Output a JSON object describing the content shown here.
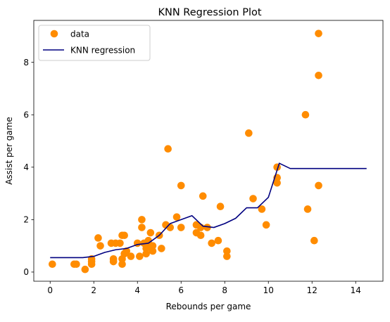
{
  "colors": {
    "data": "#ff8c00",
    "regression": "#000080",
    "axis": "#000000",
    "legend_border": "#cccccc",
    "background": "#ffffff"
  },
  "chart_data": {
    "type": "scatter",
    "title": "KNN Regression Plot",
    "xlabel": "Rebounds per game",
    "ylabel": "Assist per game",
    "xlim": [
      -0.75,
      15.25
    ],
    "ylim": [
      -0.35,
      9.6
    ],
    "xticks": [
      0,
      2,
      4,
      6,
      8,
      10,
      12,
      14
    ],
    "yticks": [
      0,
      2,
      4,
      6,
      8
    ],
    "grid": false,
    "legend_position": "upper-left",
    "series": [
      {
        "name": "data",
        "type": "scatter",
        "color": "#ff8c00",
        "points": [
          [
            0.1,
            0.3
          ],
          [
            1.1,
            0.3
          ],
          [
            1.2,
            0.3
          ],
          [
            1.6,
            0.1
          ],
          [
            1.9,
            0.3
          ],
          [
            1.9,
            0.4
          ],
          [
            1.9,
            0.5
          ],
          [
            2.2,
            1.3
          ],
          [
            2.3,
            1.0
          ],
          [
            2.8,
            1.1
          ],
          [
            2.9,
            0.5
          ],
          [
            2.9,
            0.4
          ],
          [
            3.0,
            1.1
          ],
          [
            3.2,
            1.1
          ],
          [
            3.3,
            1.4
          ],
          [
            3.3,
            0.5
          ],
          [
            3.3,
            0.3
          ],
          [
            3.4,
            1.4
          ],
          [
            3.4,
            0.7
          ],
          [
            3.5,
            0.8
          ],
          [
            3.7,
            0.6
          ],
          [
            4.0,
            1.1
          ],
          [
            4.1,
            0.6
          ],
          [
            4.2,
            2.0
          ],
          [
            4.2,
            1.7
          ],
          [
            4.3,
            1.1
          ],
          [
            4.4,
            0.7
          ],
          [
            4.4,
            0.9
          ],
          [
            4.5,
            1.2
          ],
          [
            4.6,
            1.0
          ],
          [
            4.6,
            1.5
          ],
          [
            4.7,
            1.0
          ],
          [
            4.7,
            0.8
          ],
          [
            5.0,
            1.4
          ],
          [
            5.1,
            0.9
          ],
          [
            5.3,
            1.8
          ],
          [
            5.4,
            4.7
          ],
          [
            5.5,
            1.7
          ],
          [
            5.8,
            2.1
          ],
          [
            6.0,
            1.7
          ],
          [
            6.0,
            3.3
          ],
          [
            6.7,
            1.8
          ],
          [
            6.7,
            1.5
          ],
          [
            6.9,
            1.7
          ],
          [
            6.9,
            1.4
          ],
          [
            7.0,
            2.9
          ],
          [
            7.2,
            1.7
          ],
          [
            7.4,
            1.1
          ],
          [
            7.7,
            1.2
          ],
          [
            7.8,
            2.5
          ],
          [
            8.1,
            0.8
          ],
          [
            8.1,
            0.6
          ],
          [
            9.1,
            5.3
          ],
          [
            9.3,
            2.8
          ],
          [
            9.7,
            2.4
          ],
          [
            9.9,
            1.8
          ],
          [
            10.4,
            4.0
          ],
          [
            10.4,
            3.6
          ],
          [
            10.4,
            3.4
          ],
          [
            11.7,
            6.0
          ],
          [
            11.8,
            2.4
          ],
          [
            12.1,
            1.2
          ],
          [
            12.3,
            9.1
          ],
          [
            12.3,
            7.5
          ],
          [
            12.3,
            3.3
          ]
        ]
      },
      {
        "name": "KNN regression",
        "type": "line",
        "color": "#000080",
        "points": [
          [
            0,
            0.55
          ],
          [
            1.5,
            0.55
          ],
          [
            2,
            0.6
          ],
          [
            2.5,
            0.75
          ],
          [
            3,
            0.85
          ],
          [
            3.5,
            0.9
          ],
          [
            4,
            1.05
          ],
          [
            4.5,
            1.1
          ],
          [
            5,
            1.4
          ],
          [
            5.5,
            1.85
          ],
          [
            6,
            2.0
          ],
          [
            6.5,
            2.15
          ],
          [
            7,
            1.75
          ],
          [
            7.5,
            1.7
          ],
          [
            8,
            1.85
          ],
          [
            8.5,
            2.05
          ],
          [
            9,
            2.45
          ],
          [
            9.5,
            2.45
          ],
          [
            10,
            2.85
          ],
          [
            10.5,
            4.15
          ],
          [
            11,
            3.95
          ],
          [
            11.5,
            3.95
          ],
          [
            12,
            3.95
          ],
          [
            12.5,
            3.95
          ],
          [
            13,
            3.95
          ],
          [
            13.5,
            3.95
          ],
          [
            14,
            3.95
          ],
          [
            14.5,
            3.95
          ]
        ]
      }
    ]
  }
}
